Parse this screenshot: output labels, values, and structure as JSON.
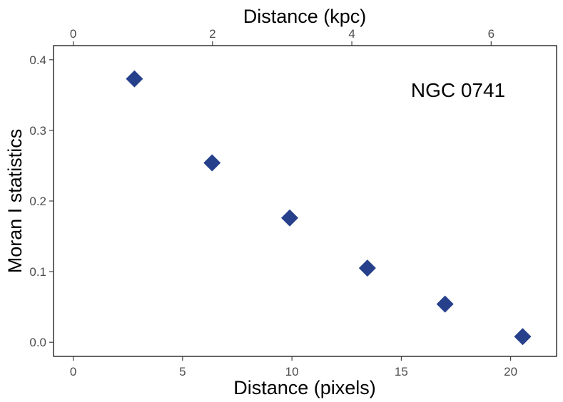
{
  "chart_data": {
    "type": "scatter",
    "title": "",
    "xlabel": "Distance (pixels)",
    "ylabel": "Moran I statistics",
    "x2label": "Distance (kpc)",
    "annotation": "NGC 0741",
    "xlim": [
      -0.9,
      22.1
    ],
    "ylim": [
      -0.02,
      0.42
    ],
    "x_ticks": [
      0,
      5,
      10,
      15,
      20
    ],
    "x_tick_labels": [
      "0",
      "5",
      "10",
      "15",
      "20"
    ],
    "y_ticks": [
      0.0,
      0.1,
      0.2,
      0.3,
      0.4
    ],
    "y_tick_labels": [
      "0.0",
      "0.1",
      "0.2",
      "0.3",
      "0.4"
    ],
    "x2_ticks_kpc": [
      0,
      2,
      4,
      6
    ],
    "x2_tick_labels": [
      "0",
      "2",
      "4",
      "6"
    ],
    "kpc_per_pixel": 0.314,
    "grid": false,
    "legend": "none",
    "marker": "diamond",
    "marker_color": "#27408b",
    "series": [
      {
        "x": [
          2.8,
          6.35,
          9.9,
          13.45,
          17.0,
          20.55
        ],
        "y": [
          0.373,
          0.254,
          0.176,
          0.105,
          0.054,
          0.008
        ]
      }
    ]
  }
}
